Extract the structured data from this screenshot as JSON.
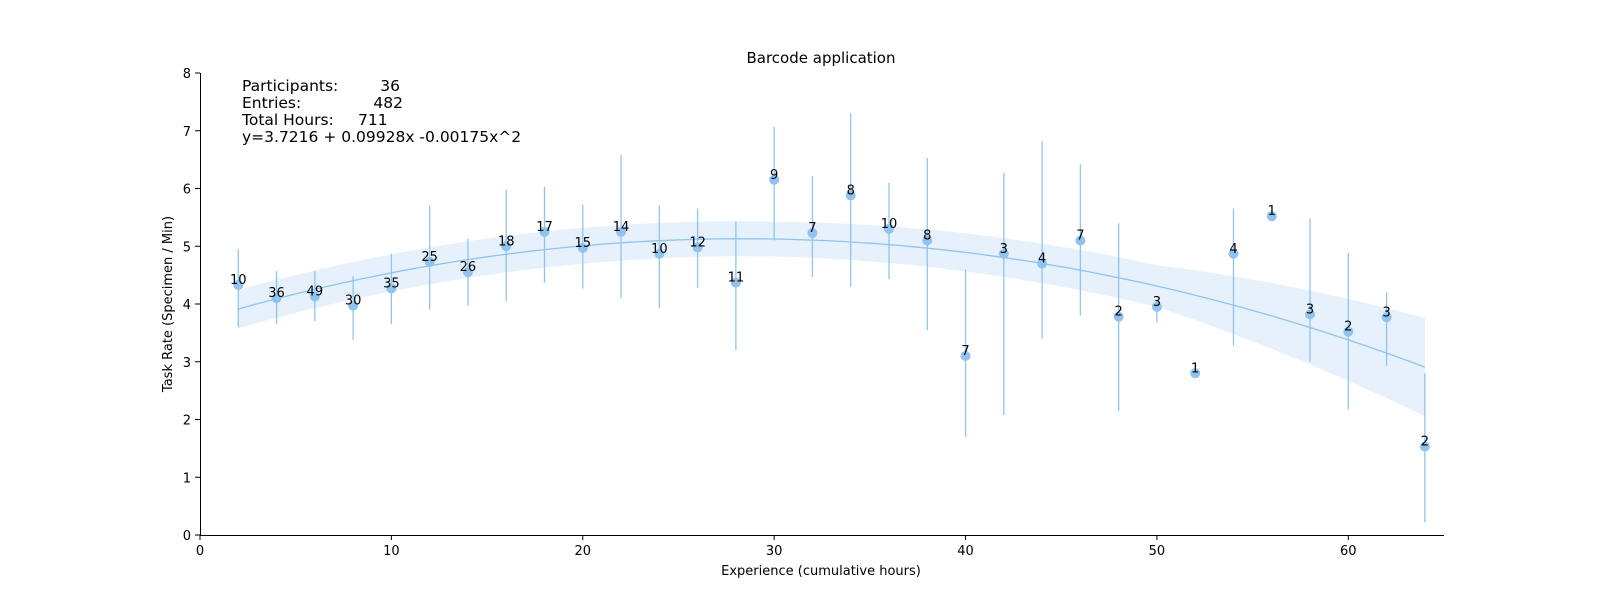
{
  "chart_data": {
    "type": "scatter",
    "title": "Barcode application",
    "xlabel": "Experience (cumulative hours)",
    "ylabel": "Task Rate (Specimen / Min)",
    "xlim": [
      0,
      65
    ],
    "ylim": [
      0,
      8
    ],
    "xticks": [
      "0",
      "10",
      "20",
      "30",
      "40",
      "50",
      "60"
    ],
    "yticks": [
      "0",
      "1",
      "2",
      "3",
      "4",
      "5",
      "6",
      "7",
      "8"
    ],
    "grid": false,
    "color": "#90c4ee",
    "band_color": "#e6f1fc",
    "points": [
      {
        "x": 2,
        "y": 4.33,
        "low": 3.6,
        "high": 4.95,
        "label": "10"
      },
      {
        "x": 4,
        "y": 4.1,
        "low": 3.65,
        "high": 4.57,
        "label": "36"
      },
      {
        "x": 6,
        "y": 4.13,
        "low": 3.7,
        "high": 4.57,
        "label": "49"
      },
      {
        "x": 8,
        "y": 3.97,
        "low": 3.38,
        "high": 4.48,
        "label": "30"
      },
      {
        "x": 10,
        "y": 4.27,
        "low": 3.65,
        "high": 4.87,
        "label": "35"
      },
      {
        "x": 12,
        "y": 4.73,
        "low": 3.9,
        "high": 5.7,
        "label": "25"
      },
      {
        "x": 14,
        "y": 4.55,
        "low": 3.97,
        "high": 5.13,
        "label": "26"
      },
      {
        "x": 16,
        "y": 5.0,
        "low": 4.05,
        "high": 5.98,
        "label": "18"
      },
      {
        "x": 18,
        "y": 5.25,
        "low": 4.37,
        "high": 6.03,
        "label": "17"
      },
      {
        "x": 20,
        "y": 4.97,
        "low": 4.27,
        "high": 5.72,
        "label": "15"
      },
      {
        "x": 22,
        "y": 5.25,
        "low": 4.1,
        "high": 6.58,
        "label": "14"
      },
      {
        "x": 24,
        "y": 4.87,
        "low": 3.93,
        "high": 5.7,
        "label": "10"
      },
      {
        "x": 26,
        "y": 4.98,
        "low": 4.28,
        "high": 5.65,
        "label": "12"
      },
      {
        "x": 28,
        "y": 4.37,
        "low": 3.2,
        "high": 5.43,
        "label": "11"
      },
      {
        "x": 30,
        "y": 6.15,
        "low": 5.1,
        "high": 7.07,
        "label": "9"
      },
      {
        "x": 32,
        "y": 5.23,
        "low": 4.47,
        "high": 6.22,
        "label": "7"
      },
      {
        "x": 34,
        "y": 5.88,
        "low": 4.3,
        "high": 7.3,
        "label": "8"
      },
      {
        "x": 36,
        "y": 5.3,
        "low": 4.43,
        "high": 6.1,
        "label": "10"
      },
      {
        "x": 38,
        "y": 5.1,
        "low": 3.55,
        "high": 6.53,
        "label": "8"
      },
      {
        "x": 40,
        "y": 3.1,
        "low": 1.7,
        "high": 4.6,
        "label": "7"
      },
      {
        "x": 42,
        "y": 4.87,
        "low": 2.08,
        "high": 6.27,
        "label": "3"
      },
      {
        "x": 44,
        "y": 4.7,
        "low": 3.4,
        "high": 6.82,
        "label": "4"
      },
      {
        "x": 46,
        "y": 5.1,
        "low": 3.8,
        "high": 6.42,
        "label": "7"
      },
      {
        "x": 48,
        "y": 3.78,
        "low": 2.15,
        "high": 5.4,
        "label": "2"
      },
      {
        "x": 50,
        "y": 3.95,
        "low": 3.68,
        "high": 4.07,
        "label": "3"
      },
      {
        "x": 52,
        "y": 2.8,
        "low": null,
        "high": null,
        "label": "1"
      },
      {
        "x": 54,
        "y": 4.87,
        "low": 3.28,
        "high": 5.65,
        "label": "4"
      },
      {
        "x": 56,
        "y": 5.52,
        "low": null,
        "high": null,
        "label": "1"
      },
      {
        "x": 58,
        "y": 3.82,
        "low": 3.0,
        "high": 5.48,
        "label": "3"
      },
      {
        "x": 60,
        "y": 3.52,
        "low": 2.17,
        "high": 4.88,
        "label": "2"
      },
      {
        "x": 62,
        "y": 3.77,
        "low": 2.93,
        "high": 4.2,
        "label": "3"
      },
      {
        "x": 64,
        "y": 1.53,
        "low": 0.22,
        "high": 2.8,
        "label": "2"
      }
    ],
    "fit": {
      "intercept": 3.7216,
      "b1": 0.09928,
      "b2": -0.00175,
      "x_range": [
        2,
        64
      ],
      "band_halfwidth": [
        {
          "x": 2,
          "w": 0.33
        },
        {
          "x": 30,
          "w": 0.3
        },
        {
          "x": 50,
          "w": 0.36
        },
        {
          "x": 64,
          "w": 0.85
        }
      ]
    }
  },
  "info": {
    "participants_label": "Participants:",
    "participants_value": "36",
    "entries_label": "Entries:",
    "entries_value": "482",
    "hours_label": "Total Hours:",
    "hours_value": "711",
    "equation": "y=3.7216 + 0.09928x -0.00175x^2"
  }
}
